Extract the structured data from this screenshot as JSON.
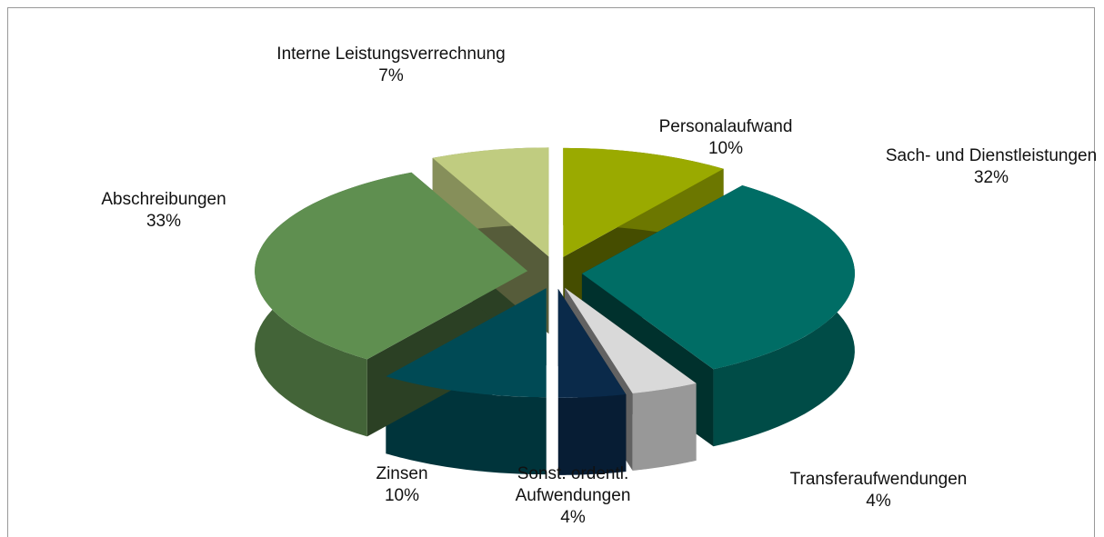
{
  "chart_data": {
    "type": "pie",
    "categories": [
      "Personalaufwand",
      "Sach- und Dienstleistungen",
      "Transferaufwendungen",
      "Sonst. ordentl. Aufwendungen",
      "Zinsen",
      "Abschreibungen",
      "Interne Leistungsverrechnung"
    ],
    "values": [
      10,
      32,
      4,
      4,
      10,
      33,
      7
    ],
    "value_labels": [
      "10%",
      "32%",
      "4%",
      "4%",
      "10%",
      "33%",
      "7%"
    ],
    "colors": [
      "#9aaa00",
      "#006d65",
      "#d9d9d9",
      "#0a2a4a",
      "#004a55",
      "#5f8f50",
      "#c0cc80"
    ]
  }
}
